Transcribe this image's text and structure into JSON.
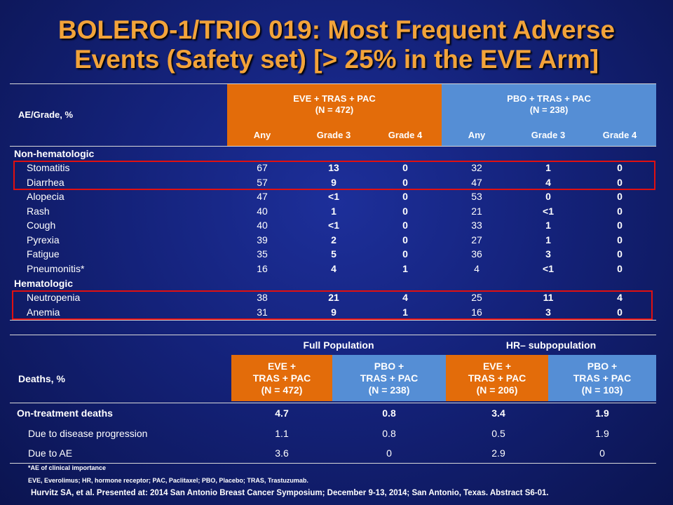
{
  "title_line1": "BOLERO-1/TRIO 019: Most Frequent Adverse",
  "title_line2": "Events (Safety set) [> 25% in the EVE Arm]",
  "ae_table": {
    "row_label_header": "AE/Grade, %",
    "group1": {
      "line1": "EVE + TRAS + PAC",
      "line2": "(N = 472)"
    },
    "group2": {
      "line1": "PBO + TRAS + PAC",
      "line2": "(N = 238)"
    },
    "subcols": [
      "Any",
      "Grade 3",
      "Grade 4",
      "Any",
      "Grade 3",
      "Grade 4"
    ],
    "section_nonheme": "Non-hematologic",
    "section_heme": "Hematologic",
    "nonheme_rows": [
      {
        "name": "Stomatitis",
        "vals": [
          "67",
          "13",
          "0",
          "32",
          "1",
          "0"
        ]
      },
      {
        "name": "Diarrhea",
        "vals": [
          "57",
          "9",
          "0",
          "47",
          "4",
          "0"
        ]
      },
      {
        "name": "Alopecia",
        "vals": [
          "47",
          "<1",
          "0",
          "53",
          "0",
          "0"
        ]
      },
      {
        "name": "Rash",
        "vals": [
          "40",
          "1",
          "0",
          "21",
          "<1",
          "0"
        ]
      },
      {
        "name": "Cough",
        "vals": [
          "40",
          "<1",
          "0",
          "33",
          "1",
          "0"
        ]
      },
      {
        "name": "Pyrexia",
        "vals": [
          "39",
          "2",
          "0",
          "27",
          "1",
          "0"
        ]
      },
      {
        "name": "Fatigue",
        "vals": [
          "35",
          "5",
          "0",
          "36",
          "3",
          "0"
        ]
      },
      {
        "name": "Pneumonitis*",
        "vals": [
          "16",
          "4",
          "1",
          "4",
          "<1",
          "0"
        ]
      }
    ],
    "heme_rows": [
      {
        "name": "Neutropenia",
        "vals": [
          "38",
          "21",
          "4",
          "25",
          "11",
          "4"
        ]
      },
      {
        "name": "Anemia",
        "vals": [
          "31",
          "9",
          "1",
          "16",
          "3",
          "0"
        ]
      }
    ]
  },
  "deaths_table": {
    "row_label_header": "Deaths, %",
    "group_full": "Full Population",
    "group_hr": "HR– subpopulation",
    "cols": [
      {
        "l1": "EVE +",
        "l2": "TRAS + PAC",
        "l3": "(N = 472)"
      },
      {
        "l1": "PBO +",
        "l2": "TRAS + PAC",
        "l3": "(N = 238)"
      },
      {
        "l1": "EVE +",
        "l2": "TRAS + PAC",
        "l3": "(N = 206)"
      },
      {
        "l1": "PBO +",
        "l2": "TRAS + PAC",
        "l3": "(N = 103)"
      }
    ],
    "rows": [
      {
        "name": "On-treatment deaths",
        "vals": [
          "4.7",
          "0.8",
          "3.4",
          "1.9"
        ]
      },
      {
        "name": "Due to disease progression",
        "vals": [
          "1.1",
          "0.8",
          "0.5",
          "1.9"
        ]
      },
      {
        "name": "Due to AE",
        "vals": [
          "3.6",
          "0",
          "2.9",
          "0"
        ]
      }
    ]
  },
  "footnote1": "*AE of clinical importance",
  "footnote2": "EVE, Everolimus; HR, hormone receptor; PAC, Paclitaxel; PBO, Placebo; TRAS, Trastuzumab.",
  "citation": "Hurvitz SA, et al. Presented at: 2014 San Antonio Breast Cancer Symposium; December 9-13, 2014; San Antonio, Texas. Abstract S6-01.",
  "colors": {
    "title": "#f2a33a",
    "orange_header": "#e36c0a",
    "blue_header": "#558ed5",
    "highlight": "#e01010",
    "background": "#14227a"
  }
}
